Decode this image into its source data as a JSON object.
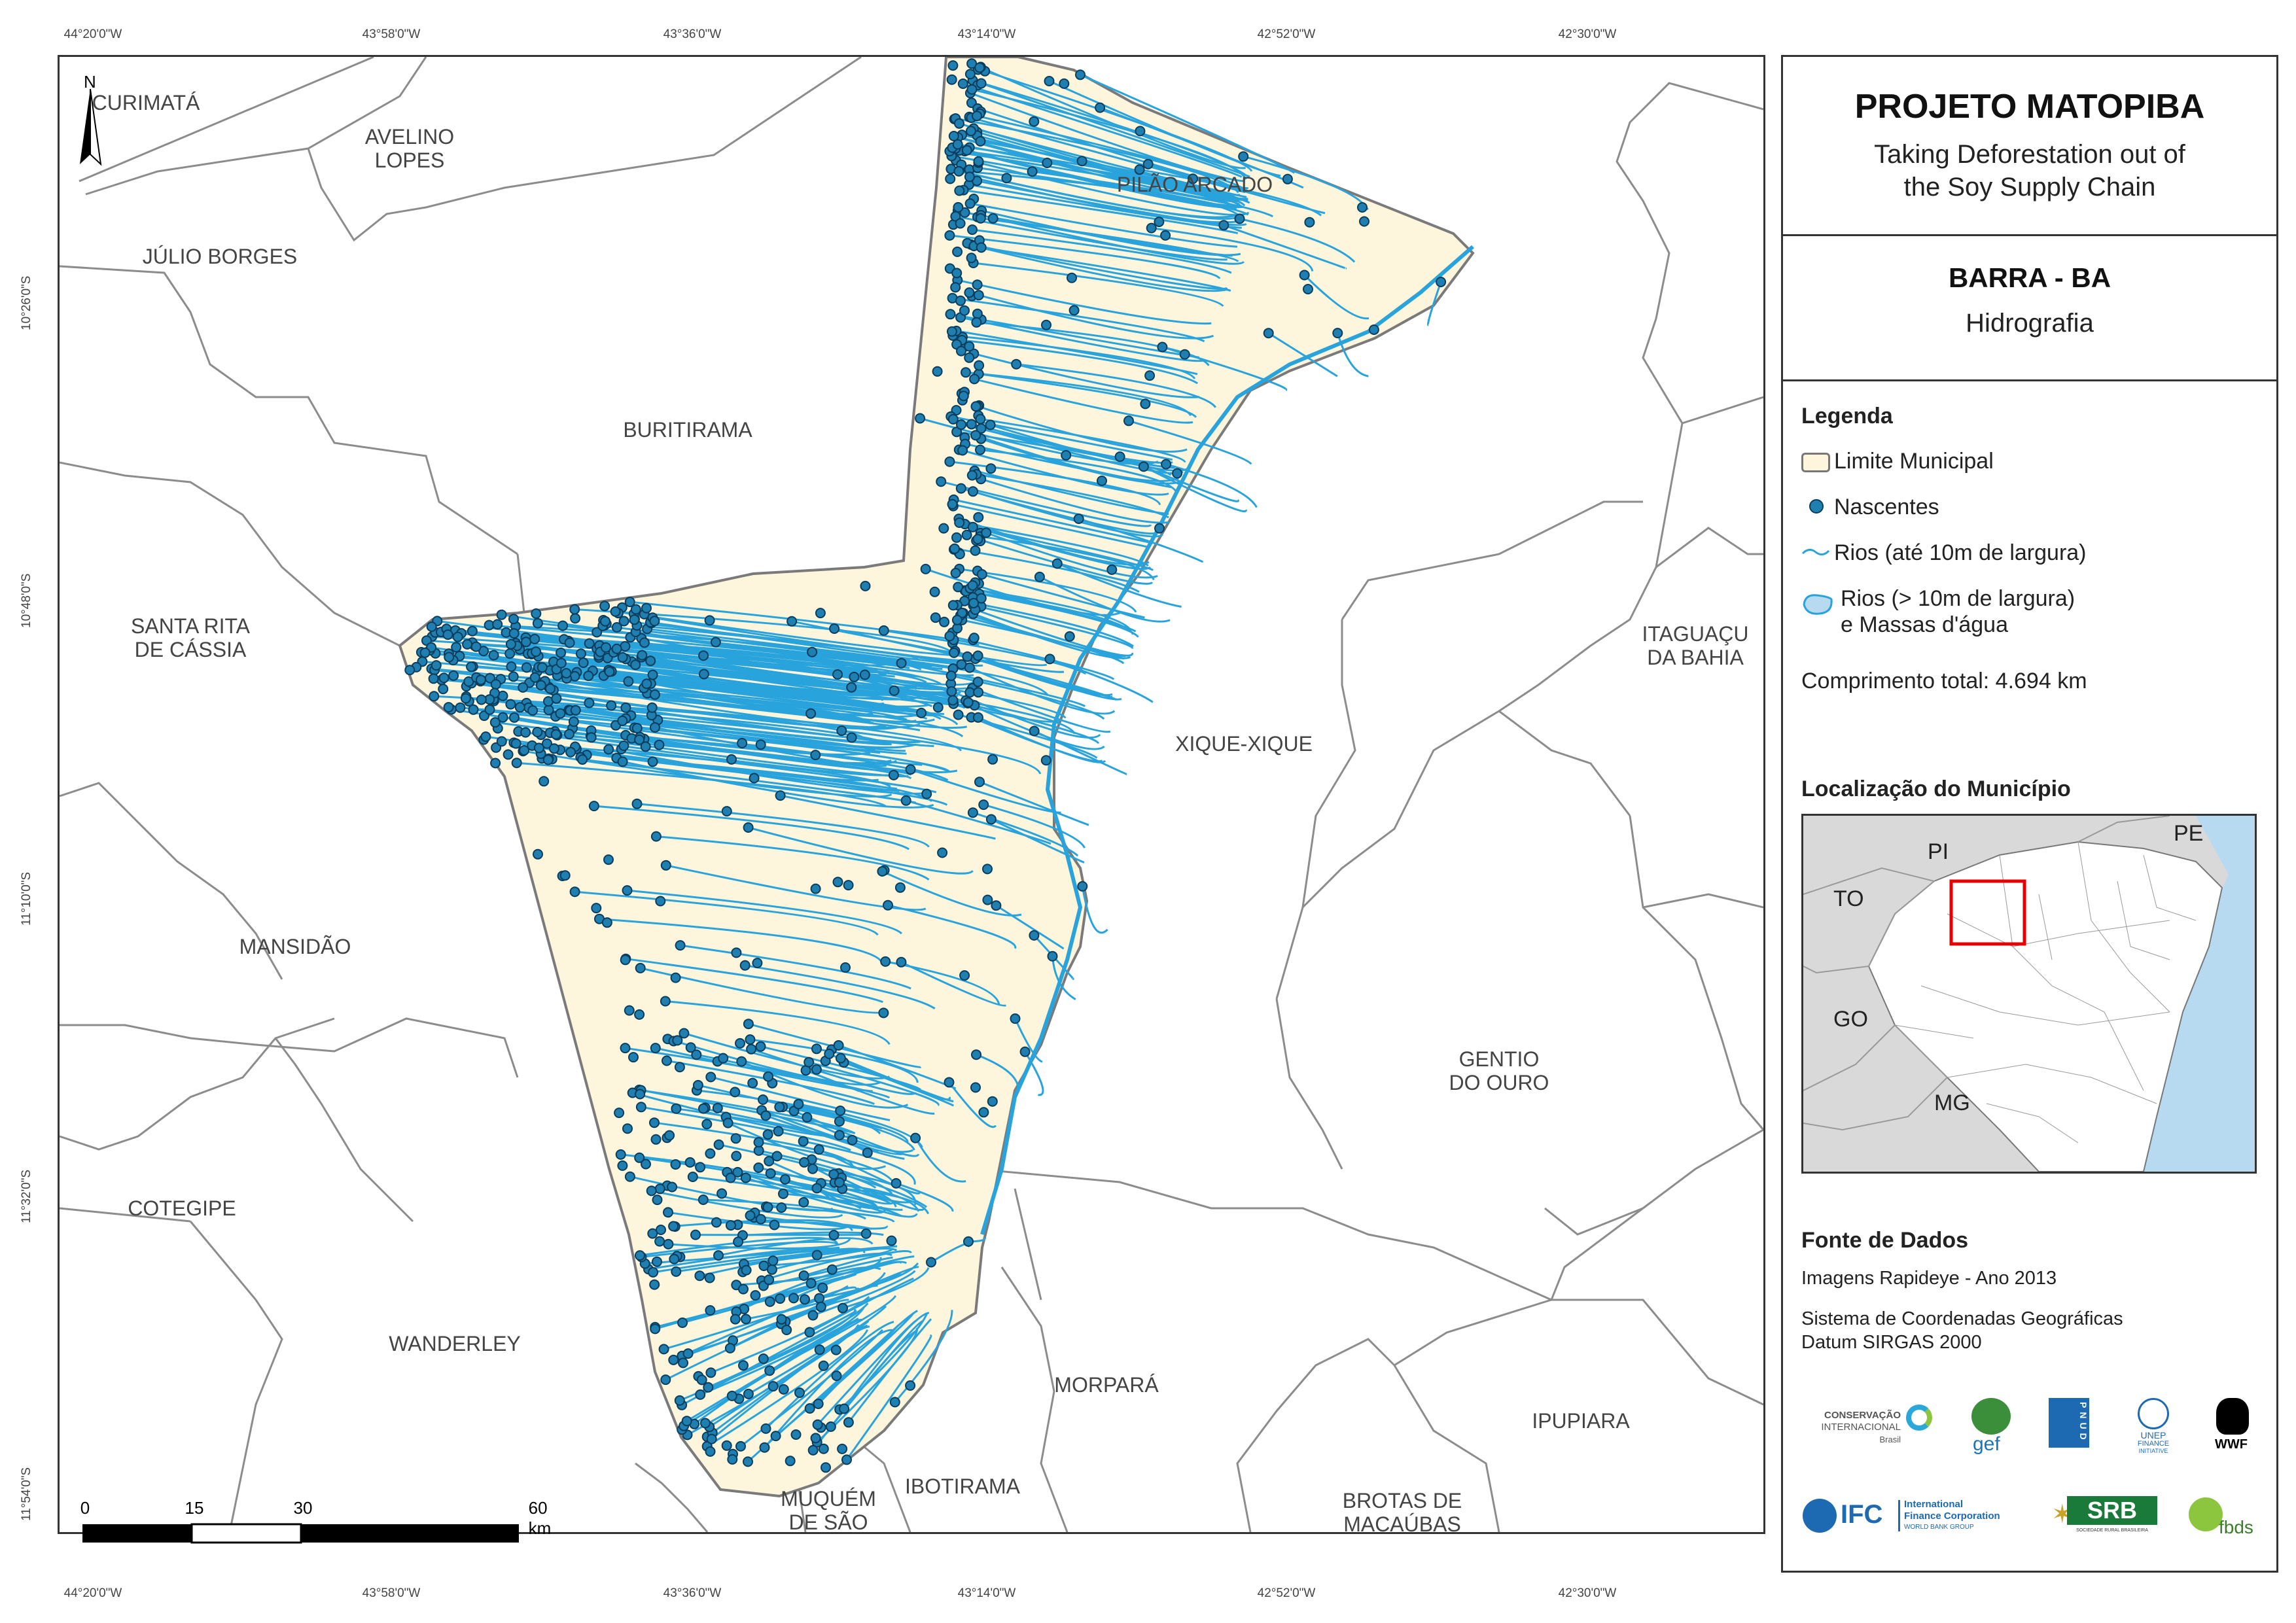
{
  "coords": {
    "top": [
      "44°20'0\"W",
      "43°58'0\"W",
      "43°36'0\"W",
      "43°14'0\"W",
      "42°52'0\"W",
      "42°30'0\"W"
    ],
    "left": [
      "10°26'0\"S",
      "10°48'0\"S",
      "11°10'0\"S",
      "11°32'0\"S",
      "11°54'0\"S"
    ]
  },
  "municipalities": {
    "curimata": "CURIMATÁ",
    "avelino_lopes": "AVELINO\nLOPES",
    "julio_borges": "JÚLIO BORGES",
    "pilao_arcado": "PILÃO ARCADO",
    "buritirama": "BURITIRAMA",
    "santa_rita": "SANTA RITA\nDE CÁSSIA",
    "itaguacu": "ITAGUAÇU\nDA BAHIA",
    "xique_xique": "XIQUE-XIQUE",
    "mansidao": "MANSIDÃO",
    "gentio_do_ouro": "GENTIO\nDO OURO",
    "cotegipe": "COTEGIPE",
    "wanderley": "WANDERLEY",
    "morpara": "MORPARÁ",
    "ipupiara": "IPUPIARA",
    "muquem": "MUQUÉM\nDE SÃO\nFRANCISCO",
    "ibotirama": "IBOTIRAMA",
    "brotas": "BROTAS DE\nMACAÚBAS"
  },
  "north_label": "N",
  "scalebar": {
    "labels": [
      "0",
      "15",
      "30",
      "60 km"
    ]
  },
  "header": {
    "title": "PROJETO MATOPIBA",
    "subtitle_line1": "Taking Deforestation out of",
    "subtitle_line2": "the Soy Supply Chain"
  },
  "municipio": {
    "name": "BARRA - BA",
    "theme": "Hidrografia"
  },
  "legend": {
    "title": "Legenda",
    "items": [
      "Limite Municipal",
      "Nascentes",
      "Rios (até 10m de largura)",
      "Rios (> 10m de largura)",
      "e Massas d'água"
    ],
    "total_length": "Comprimento total:  4.694 km"
  },
  "location": {
    "title": "Localização do Município",
    "states": [
      "PI",
      "PE",
      "TO",
      "GO",
      "MG"
    ]
  },
  "source": {
    "title": "Fonte de Dados",
    "line1": "Imagens Rapideye - Ano 2013",
    "line2": "Sistema de Coordenadas Geográficas",
    "line3": "Datum SIRGAS 2000"
  },
  "logos": {
    "ci_line1": "CONSERVAÇÃO",
    "ci_line2": "INTERNACIONAL",
    "ci_line3": "Brasil",
    "gef": "gef",
    "pnud": "PNUD",
    "unep_line1": "UNEP",
    "unep_line2": "FINANCE",
    "unep_line3": "INITIATIVE",
    "wwf": "WWF",
    "ifc": "IFC",
    "ifc_line1": "International",
    "ifc_line2": "Finance Corporation",
    "ifc_line3": "WORLD BANK GROUP",
    "srb": "SRB",
    "srb_sub": "SOCIEDADE RURAL BRASILEIRA",
    "fbds": "fbds"
  },
  "colors": {
    "municipality_fill": "#fdf5dc",
    "river": "#29a3dc",
    "spring": "#1f7fb0",
    "spring_stroke": "#0a3d5c",
    "border": "#8c8c8c",
    "inset_bg": "#d9d9d9",
    "ocean": "#b7daf0",
    "highlight": "#e60000"
  }
}
